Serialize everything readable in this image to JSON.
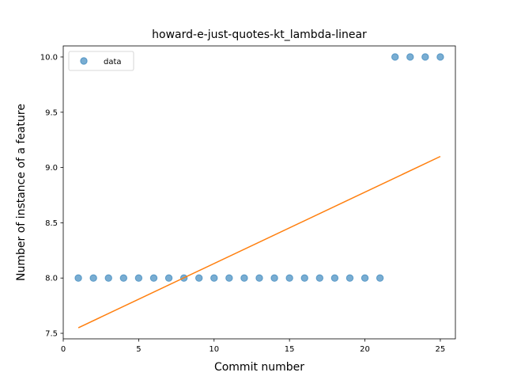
{
  "chart_data": {
    "type": "scatter",
    "title": "howard-e-just-quotes-kt_lambda-linear",
    "xlabel": "Commit number",
    "ylabel": "Number of instance of a feature",
    "xlim": [
      0,
      26
    ],
    "ylim": [
      7.45,
      10.1
    ],
    "xticks": [
      0,
      5,
      10,
      15,
      20,
      25
    ],
    "yticks": [
      7.5,
      8.0,
      8.5,
      9.0,
      9.5,
      10.0
    ],
    "grid": false,
    "legend_position": "top-left",
    "series": [
      {
        "name": "data",
        "kind": "scatter",
        "color": "#1f77b4",
        "x": [
          1,
          2,
          3,
          4,
          5,
          6,
          7,
          8,
          9,
          10,
          11,
          12,
          13,
          14,
          15,
          16,
          17,
          18,
          19,
          20,
          21,
          22,
          23,
          24,
          25
        ],
        "y": [
          8,
          8,
          8,
          8,
          8,
          8,
          8,
          8,
          8,
          8,
          8,
          8,
          8,
          8,
          8,
          8,
          8,
          8,
          8,
          8,
          8,
          10,
          10,
          10,
          10
        ]
      },
      {
        "kind": "line",
        "color": "#ff7f0e",
        "x": [
          1,
          25
        ],
        "y": [
          7.55,
          9.1
        ]
      }
    ]
  }
}
